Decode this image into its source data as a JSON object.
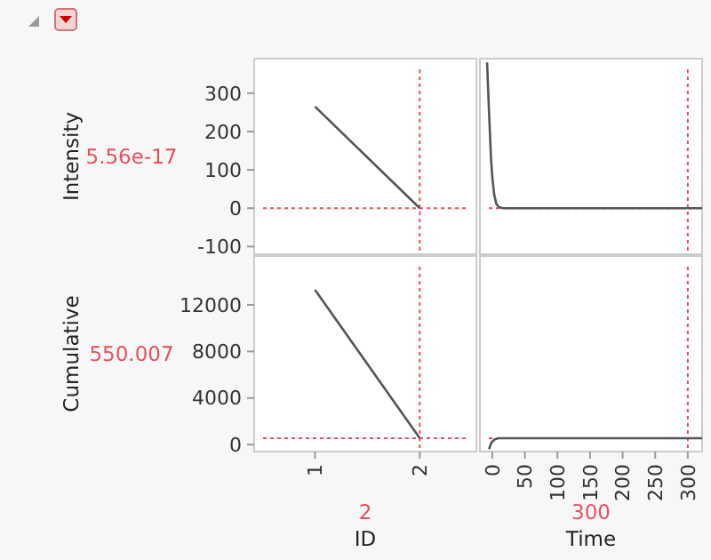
{
  "chart_data": [
    {
      "type": "line",
      "ylabel": "Intensity",
      "x": [
        1,
        2
      ],
      "xlim": [
        0.42,
        2.54
      ],
      "xticks": [
        1,
        2
      ],
      "ylim": [
        -120,
        390
      ],
      "yticks": [
        -100,
        0,
        100,
        200,
        300
      ],
      "tick_labels": "y",
      "series": [
        {
          "color": "#555555",
          "values": [
            265,
            0
          ]
        }
      ],
      "ref_lines": [
        {
          "axis": "y",
          "value": 5.56e-17,
          "label": "5.56e-17",
          "color": "#e8505b",
          "line_style": "dotted"
        },
        {
          "axis": "x",
          "value": 2,
          "color": "#e8505b",
          "line_style": "dotted"
        }
      ]
    },
    {
      "type": "line",
      "x": [
        -8,
        -5,
        -2,
        0,
        3,
        6,
        10,
        15,
        20,
        300,
        322
      ],
      "xlim": [
        -19,
        322
      ],
      "xticks": [
        0,
        50,
        100,
        150,
        200,
        250,
        300
      ],
      "ylim": [
        -120,
        390
      ],
      "yticks": [
        -100,
        0,
        100,
        200,
        300
      ],
      "tick_labels": false,
      "series": [
        {
          "color": "#555555",
          "values": [
            380,
            250,
            130,
            80,
            35,
            12,
            3,
            0.5,
            0,
            0,
            0
          ]
        }
      ],
      "ref_lines": [
        {
          "axis": "y",
          "value": 5.56e-17,
          "color": "#e8505b",
          "line_style": "dotted"
        },
        {
          "axis": "x",
          "value": 300,
          "color": "#e8505b",
          "line_style": "dotted"
        }
      ]
    },
    {
      "type": "line",
      "xlabel": "ID",
      "ylabel": "Cumulative",
      "x": [
        1,
        2
      ],
      "xlim": [
        0.42,
        2.54
      ],
      "xticks": [
        1,
        2
      ],
      "ylim": [
        -600,
        16200
      ],
      "yticks": [
        0,
        4000,
        8000,
        12000
      ],
      "series": [
        {
          "color": "#555555",
          "values": [
            13300,
            550
          ]
        }
      ],
      "ref_lines": [
        {
          "axis": "y",
          "value": 550.007,
          "label": "550.007",
          "color": "#e8505b",
          "line_style": "dotted"
        },
        {
          "axis": "x",
          "value": 2,
          "label": "2",
          "color": "#e8505b",
          "line_style": "dotted"
        }
      ]
    },
    {
      "type": "line",
      "xlabel": "Time",
      "x": [
        -5,
        -2,
        0,
        3,
        6,
        10,
        20,
        300,
        322
      ],
      "xlim": [
        -19,
        322
      ],
      "xticks": [
        0,
        50,
        100,
        150,
        200,
        250,
        300
      ],
      "ylim": [
        -600,
        16200
      ],
      "yticks": [
        0,
        4000,
        8000,
        12000
      ],
      "tick_labels": "x",
      "series": [
        {
          "color": "#555555",
          "values": [
            -400,
            100,
            250,
            420,
            500,
            540,
            550,
            550,
            550
          ]
        }
      ],
      "ref_lines": [
        {
          "axis": "y",
          "value": 550.007,
          "color": "#e8505b",
          "line_style": "dotted"
        },
        {
          "axis": "x",
          "value": 300,
          "label": "300",
          "color": "#e8505b",
          "line_style": "dotted"
        }
      ]
    }
  ]
}
